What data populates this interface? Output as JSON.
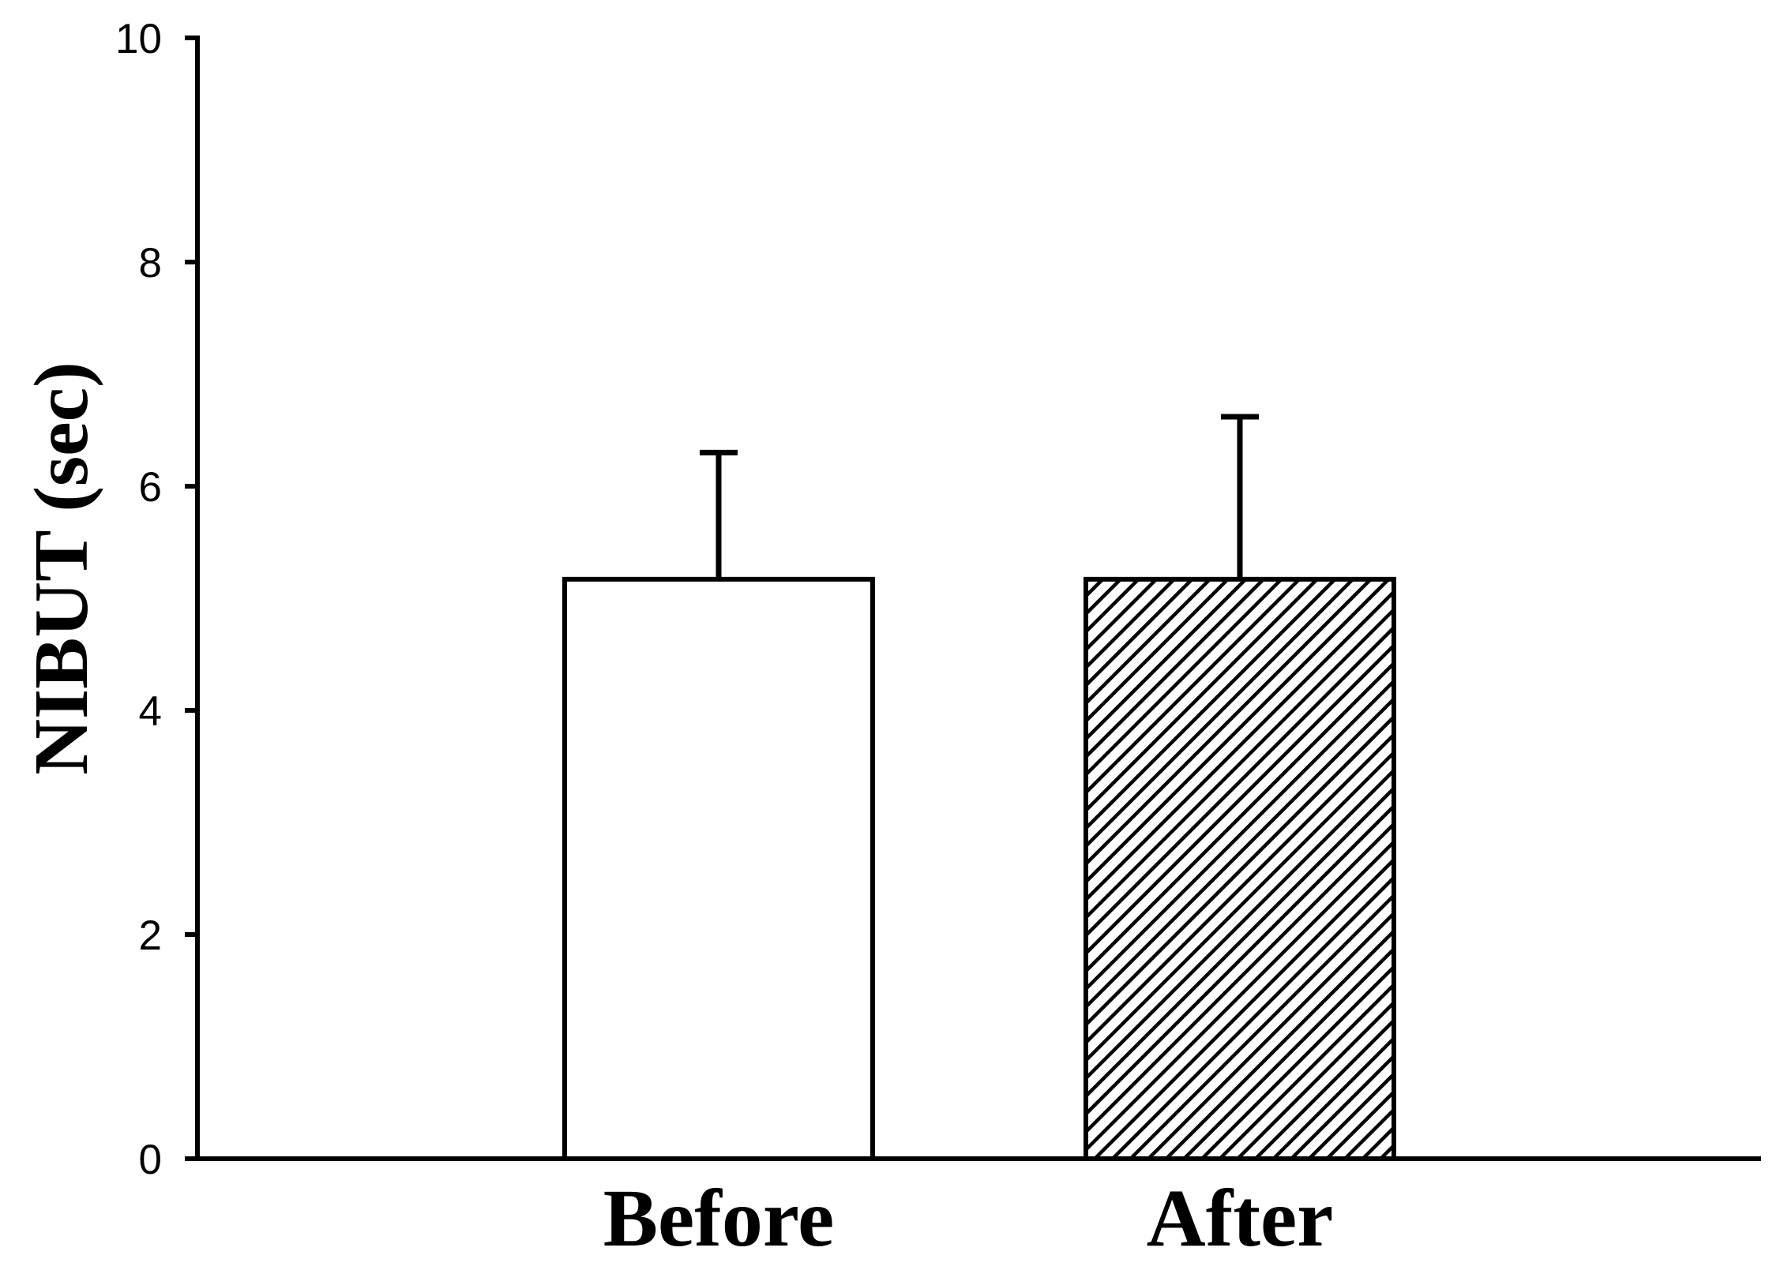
{
  "chart_data": {
    "type": "bar",
    "title": "",
    "xlabel": "",
    "ylabel": "NIBUT (sec)",
    "ylim": [
      0,
      10
    ],
    "yticks": [
      0,
      2,
      4,
      6,
      8,
      10
    ],
    "categories": [
      "Before",
      "After"
    ],
    "values": [
      5.17,
      5.17
    ],
    "error_plus": [
      1.13,
      1.45
    ],
    "fills": [
      "none",
      "diagonal-hatch"
    ],
    "grid": false,
    "legend": "none"
  },
  "colors": {
    "axis": "#000000",
    "bar_fill": "#ffffff",
    "bar_stroke": "#000000",
    "hatch": "#000000"
  }
}
